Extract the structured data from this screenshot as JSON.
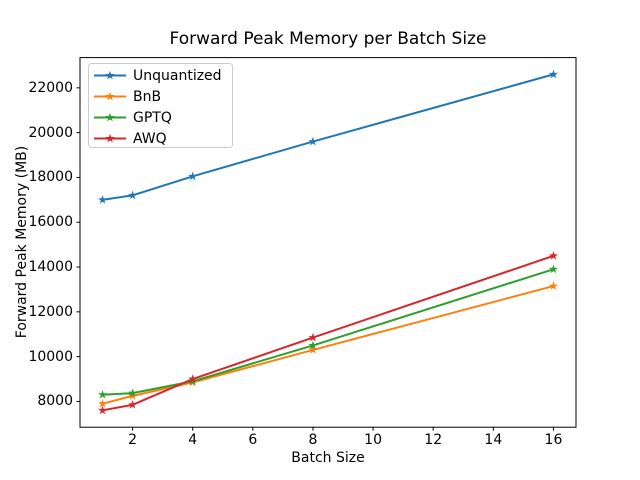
{
  "chart_data": {
    "type": "line",
    "title": "Forward Peak Memory per Batch Size",
    "xlabel": "Batch Size",
    "ylabel": "Forward Peak Memory (MB)",
    "x": [
      1,
      2,
      4,
      8,
      16
    ],
    "series": [
      {
        "name": "Unquantized",
        "color": "#1f77b4",
        "marker": "star",
        "values": [
          17000,
          17200,
          18050,
          19600,
          22600
        ]
      },
      {
        "name": "BnB",
        "color": "#ff7f0e",
        "marker": "star",
        "values": [
          7900,
          8250,
          8850,
          10300,
          13150
        ]
      },
      {
        "name": "GPTQ",
        "color": "#2ca02c",
        "marker": "star",
        "values": [
          8300,
          8370,
          8900,
          10500,
          13900
        ]
      },
      {
        "name": "AWQ",
        "color": "#d62728",
        "marker": "star",
        "values": [
          7600,
          7850,
          9000,
          10850,
          14500
        ]
      }
    ],
    "xticks": [
      2,
      4,
      6,
      8,
      10,
      12,
      14,
      16
    ],
    "yticks": [
      8000,
      10000,
      12000,
      14000,
      16000,
      18000,
      20000,
      22000
    ],
    "xlim": [
      0.25,
      16.75
    ],
    "ylim": [
      6850,
      23350
    ],
    "grid": false,
    "legend": {
      "position": "upper left",
      "frame_color": "#cccccc",
      "background": "#ffffff"
    },
    "axes_color": "#000000",
    "background_color": "#ffffff"
  }
}
